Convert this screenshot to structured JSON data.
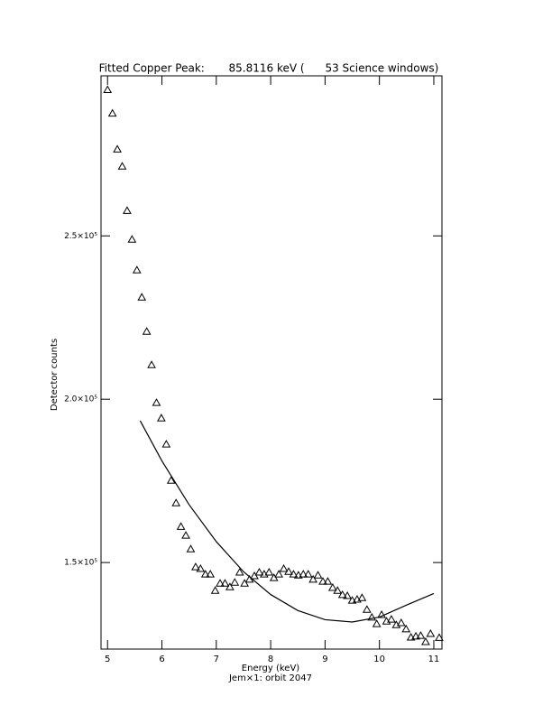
{
  "chart_data": {
    "type": "scatter",
    "title": "Fitted Copper Peak:       85.8116 keV (      53 Science windows)",
    "x_label": "Energy (keV)",
    "subtitle": "Jem×1: orbit 2047",
    "y_label": "Detector counts",
    "xlim": [
      4.88,
      11.15
    ],
    "ylim": [
      123500,
      299000
    ],
    "xticks": [
      5,
      6,
      7,
      8,
      9,
      10,
      11
    ],
    "yticks": [
      {
        "value": 150000,
        "label": "1.5×10⁵"
      },
      {
        "value": 200000,
        "label": "2.0×10⁵"
      },
      {
        "value": 250000,
        "label": "2.5×10⁵"
      }
    ],
    "series": [
      {
        "type": "scatter",
        "marker": "triangle",
        "color": "#000000",
        "x": [
          5.0,
          5.09,
          5.18,
          5.27,
          5.36,
          5.45,
          5.54,
          5.63,
          5.72,
          5.81,
          5.9,
          5.99,
          6.08,
          6.17,
          6.26,
          6.35,
          6.44,
          6.53,
          6.62,
          6.71,
          6.8,
          6.89,
          6.98,
          7.07,
          7.16,
          7.25,
          7.34,
          7.43,
          7.52,
          7.61,
          7.7,
          7.79,
          7.88,
          7.97,
          8.06,
          8.15,
          8.24,
          8.33,
          8.42,
          8.51,
          8.6,
          8.69,
          8.78,
          8.87,
          8.96,
          9.05,
          9.14,
          9.23,
          9.32,
          9.41,
          9.5,
          9.59,
          9.68,
          9.77,
          9.86,
          9.95,
          10.04,
          10.13,
          10.22,
          10.31,
          10.4,
          10.49,
          10.58,
          10.67,
          10.76,
          10.85,
          10.94,
          11.1
        ],
        "values": [
          294700,
          287500,
          276500,
          271300,
          257700,
          248900,
          239500,
          231200,
          220700,
          210500,
          198900,
          194200,
          186200,
          175100,
          168200,
          161000,
          158300,
          154100,
          148600,
          148100,
          146400,
          146400,
          141400,
          143600,
          143600,
          142500,
          143900,
          147000,
          143600,
          144800,
          145900,
          147000,
          146400,
          147000,
          145300,
          146400,
          148100,
          147200,
          146400,
          146100,
          146400,
          146400,
          144800,
          146100,
          144200,
          144200,
          142300,
          141400,
          140100,
          139800,
          138400,
          138700,
          139200,
          135600,
          133200,
          131200,
          134000,
          132000,
          132600,
          130900,
          131500,
          129600,
          127100,
          127400,
          127600,
          125700,
          128200,
          127000
        ]
      },
      {
        "type": "line",
        "color": "#000000",
        "x": [
          5.6,
          6.0,
          6.5,
          7.0,
          7.5,
          8.0,
          8.5,
          9.0,
          9.5,
          10.0,
          10.5,
          11.0
        ],
        "values": [
          193400,
          181100,
          167700,
          156400,
          147200,
          140200,
          135300,
          132500,
          131800,
          133300,
          137000,
          140500
        ]
      }
    ]
  }
}
